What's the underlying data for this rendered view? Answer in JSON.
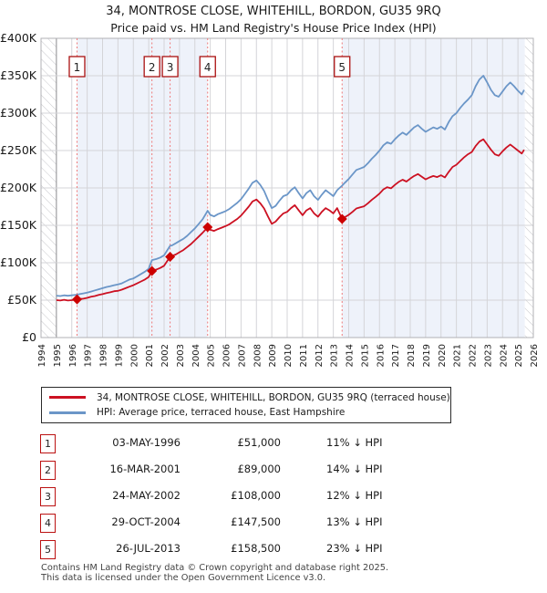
{
  "page": {
    "title_line1": "34, MONTROSE CLOSE, WHITEHILL, BORDON, GU35 9RQ",
    "title_line2": "Price paid vs. HM Land Registry's House Price Index (HPI)"
  },
  "chart_data": {
    "type": "line",
    "title": "34, MONTROSE CLOSE, WHITEHILL, BORDON, GU35 9RQ",
    "subtitle": "Price paid vs. HM Land Registry's House Price Index (HPI)",
    "units_note": "series values in thousands of GBP",
    "x_axis": {
      "min": 1994,
      "max": 2026,
      "tick_interval": 1,
      "emphasized_year_line": 1995
    },
    "y_axis": {
      "max_k": 400,
      "step_k": 50,
      "tick_labels": [
        "£0",
        "£50K",
        "£100K",
        "£150K",
        "£200K",
        "£250K",
        "£300K",
        "£350K",
        "£400K"
      ]
    },
    "colors": {
      "property_line": "#cc1122",
      "hpi_line": "#6b96c8",
      "sale_line": "#ef7a7a",
      "sale_marker": "#cc0000",
      "shade": "#eef2fa",
      "grid": "#d4d4d8",
      "grid_dark": "#8a8a8e",
      "border": "#b0b0b4",
      "hatch": "#c8c8cc",
      "num_box_border": "#aa1111"
    },
    "shaded_regions": [
      [
        1996.34,
        2004.83
      ],
      [
        2013.57,
        2025.45
      ]
    ],
    "hatch_regions": [
      [
        1994,
        1995
      ],
      [
        2025.45,
        2026
      ]
    ],
    "sales": [
      {
        "n": "1",
        "year": 1996.34,
        "price_k": 51,
        "date": "03-MAY-1996",
        "price": "£51,000",
        "vs_hpi": "11% ↓ HPI"
      },
      {
        "n": "2",
        "year": 2001.21,
        "price_k": 89,
        "date": "16-MAR-2001",
        "price": "£89,000",
        "vs_hpi": "14% ↓ HPI"
      },
      {
        "n": "3",
        "year": 2002.39,
        "price_k": 108,
        "date": "24-MAY-2002",
        "price": "£108,000",
        "vs_hpi": "12% ↓ HPI"
      },
      {
        "n": "4",
        "year": 2004.83,
        "price_k": 147.5,
        "date": "29-OCT-2004",
        "price": "£147,500",
        "vs_hpi": "13% ↓ HPI"
      },
      {
        "n": "5",
        "year": 2013.57,
        "price_k": 158.5,
        "date": "26-JUL-2013",
        "price": "£158,500",
        "vs_hpi": "23% ↓ HPI"
      }
    ],
    "series": [
      {
        "name": "34, MONTROSE CLOSE, WHITEHILL, BORDON, GU35 9RQ (terraced house)",
        "color": "#cc1122",
        "points": [
          [
            1995.0,
            50
          ],
          [
            1995.25,
            49.5
          ],
          [
            1995.5,
            50.5
          ],
          [
            1995.75,
            49.5
          ],
          [
            1996.0,
            50
          ],
          [
            1996.34,
            51
          ],
          [
            1996.5,
            51.5
          ],
          [
            1996.75,
            52
          ],
          [
            1997.0,
            53
          ],
          [
            1997.25,
            54.5
          ],
          [
            1997.5,
            55.5
          ],
          [
            1997.75,
            57
          ],
          [
            1998.0,
            58
          ],
          [
            1998.25,
            59.5
          ],
          [
            1998.5,
            60.5
          ],
          [
            1998.75,
            62
          ],
          [
            1999.0,
            62.5
          ],
          [
            1999.25,
            64
          ],
          [
            1999.5,
            66
          ],
          [
            1999.75,
            68
          ],
          [
            2000.0,
            70
          ],
          [
            2000.25,
            72.5
          ],
          [
            2000.5,
            75
          ],
          [
            2000.75,
            77.5
          ],
          [
            2001.0,
            81
          ],
          [
            2001.21,
            89
          ],
          [
            2001.5,
            91
          ],
          [
            2001.75,
            93
          ],
          [
            2002.0,
            96
          ],
          [
            2002.39,
            108
          ],
          [
            2002.5,
            109
          ],
          [
            2002.75,
            111
          ],
          [
            2003.0,
            114
          ],
          [
            2003.25,
            117
          ],
          [
            2003.5,
            121
          ],
          [
            2003.75,
            125
          ],
          [
            2004.0,
            130
          ],
          [
            2004.25,
            135
          ],
          [
            2004.5,
            140
          ],
          [
            2004.83,
            147.5
          ],
          [
            2005.0,
            144
          ],
          [
            2005.25,
            142.5
          ],
          [
            2005.5,
            145
          ],
          [
            2005.75,
            147
          ],
          [
            2006.0,
            149
          ],
          [
            2006.25,
            151.5
          ],
          [
            2006.5,
            155
          ],
          [
            2006.75,
            158.5
          ],
          [
            2007.0,
            163
          ],
          [
            2007.25,
            169
          ],
          [
            2007.5,
            175
          ],
          [
            2007.75,
            182
          ],
          [
            2008.0,
            184.5
          ],
          [
            2008.25,
            179.5
          ],
          [
            2008.5,
            172.5
          ],
          [
            2008.75,
            162
          ],
          [
            2009.0,
            152
          ],
          [
            2009.25,
            155
          ],
          [
            2009.5,
            161
          ],
          [
            2009.75,
            166
          ],
          [
            2010.0,
            168
          ],
          [
            2010.25,
            173
          ],
          [
            2010.5,
            177
          ],
          [
            2010.75,
            170
          ],
          [
            2011.0,
            163.5
          ],
          [
            2011.25,
            170
          ],
          [
            2011.5,
            173
          ],
          [
            2011.75,
            166
          ],
          [
            2012.0,
            161.5
          ],
          [
            2012.25,
            168
          ],
          [
            2012.5,
            173
          ],
          [
            2012.75,
            170
          ],
          [
            2013.0,
            166
          ],
          [
            2013.25,
            173
          ],
          [
            2013.57,
            158.5
          ],
          [
            2013.75,
            161
          ],
          [
            2014.0,
            164
          ],
          [
            2014.25,
            168
          ],
          [
            2014.5,
            172.5
          ],
          [
            2014.75,
            174
          ],
          [
            2015.0,
            175.5
          ],
          [
            2015.25,
            179.5
          ],
          [
            2015.5,
            184
          ],
          [
            2015.75,
            188
          ],
          [
            2016.0,
            192.5
          ],
          [
            2016.25,
            198
          ],
          [
            2016.5,
            201
          ],
          [
            2016.75,
            199.5
          ],
          [
            2017.0,
            204
          ],
          [
            2017.25,
            208
          ],
          [
            2017.5,
            211
          ],
          [
            2017.75,
            208.5
          ],
          [
            2018.0,
            212.5
          ],
          [
            2018.25,
            216
          ],
          [
            2018.5,
            218.5
          ],
          [
            2018.75,
            215
          ],
          [
            2019.0,
            211.5
          ],
          [
            2019.25,
            214
          ],
          [
            2019.5,
            216
          ],
          [
            2019.75,
            214.5
          ],
          [
            2020.0,
            217
          ],
          [
            2020.25,
            214
          ],
          [
            2020.5,
            221.5
          ],
          [
            2020.75,
            228
          ],
          [
            2021.0,
            231
          ],
          [
            2021.25,
            236
          ],
          [
            2021.5,
            241
          ],
          [
            2021.75,
            245
          ],
          [
            2022.0,
            248
          ],
          [
            2022.25,
            256
          ],
          [
            2022.5,
            262
          ],
          [
            2022.75,
            265
          ],
          [
            2023.0,
            258
          ],
          [
            2023.25,
            251
          ],
          [
            2023.5,
            245
          ],
          [
            2023.75,
            243
          ],
          [
            2024.0,
            249
          ],
          [
            2024.25,
            254
          ],
          [
            2024.5,
            258
          ],
          [
            2024.75,
            254
          ],
          [
            2025.0,
            250
          ],
          [
            2025.25,
            246
          ],
          [
            2025.4,
            251
          ]
        ]
      },
      {
        "name": "HPI: Average price, terraced house, East Hampshire",
        "color": "#6b96c8",
        "points": [
          [
            1995.0,
            56
          ],
          [
            1995.25,
            55.5
          ],
          [
            1995.5,
            56.5
          ],
          [
            1995.75,
            55.8
          ],
          [
            1996.0,
            56.5
          ],
          [
            1996.34,
            57.3
          ],
          [
            1996.5,
            58
          ],
          [
            1996.75,
            59
          ],
          [
            1997.0,
            60
          ],
          [
            1997.25,
            61.5
          ],
          [
            1997.5,
            63
          ],
          [
            1997.75,
            64.5
          ],
          [
            1998.0,
            66
          ],
          [
            1998.25,
            67.5
          ],
          [
            1998.5,
            68.5
          ],
          [
            1998.75,
            70
          ],
          [
            1999.0,
            71
          ],
          [
            1999.25,
            72.5
          ],
          [
            1999.5,
            75
          ],
          [
            1999.75,
            77.5
          ],
          [
            2000.0,
            79
          ],
          [
            2000.25,
            82
          ],
          [
            2000.5,
            85
          ],
          [
            2000.75,
            88
          ],
          [
            2001.0,
            92
          ],
          [
            2001.21,
            103.5
          ],
          [
            2001.5,
            105
          ],
          [
            2001.75,
            107
          ],
          [
            2002.0,
            110
          ],
          [
            2002.39,
            122.7
          ],
          [
            2002.5,
            123
          ],
          [
            2002.75,
            126
          ],
          [
            2003.0,
            129
          ],
          [
            2003.25,
            132
          ],
          [
            2003.5,
            136
          ],
          [
            2003.75,
            141
          ],
          [
            2004.0,
            146
          ],
          [
            2004.25,
            152
          ],
          [
            2004.5,
            158
          ],
          [
            2004.83,
            169.5
          ],
          [
            2005.0,
            164
          ],
          [
            2005.25,
            162
          ],
          [
            2005.5,
            165
          ],
          [
            2005.75,
            167
          ],
          [
            2006.0,
            169
          ],
          [
            2006.25,
            172
          ],
          [
            2006.5,
            176
          ],
          [
            2006.75,
            180
          ],
          [
            2007.0,
            185
          ],
          [
            2007.25,
            192
          ],
          [
            2007.5,
            199
          ],
          [
            2007.75,
            207
          ],
          [
            2008.0,
            210
          ],
          [
            2008.25,
            204
          ],
          [
            2008.5,
            196
          ],
          [
            2008.75,
            184
          ],
          [
            2009.0,
            173
          ],
          [
            2009.25,
            176
          ],
          [
            2009.5,
            183
          ],
          [
            2009.75,
            189
          ],
          [
            2010.0,
            191
          ],
          [
            2010.25,
            197
          ],
          [
            2010.5,
            201
          ],
          [
            2010.75,
            193
          ],
          [
            2011.0,
            186
          ],
          [
            2011.25,
            193
          ],
          [
            2011.5,
            197
          ],
          [
            2011.75,
            189
          ],
          [
            2012.0,
            184
          ],
          [
            2012.25,
            191
          ],
          [
            2012.5,
            197
          ],
          [
            2012.75,
            193
          ],
          [
            2013.0,
            189
          ],
          [
            2013.25,
            197
          ],
          [
            2013.57,
            203
          ],
          [
            2013.75,
            207
          ],
          [
            2014.0,
            212
          ],
          [
            2014.25,
            218
          ],
          [
            2014.5,
            224
          ],
          [
            2014.75,
            226
          ],
          [
            2015.0,
            228
          ],
          [
            2015.25,
            233
          ],
          [
            2015.5,
            239
          ],
          [
            2015.75,
            244
          ],
          [
            2016.0,
            250
          ],
          [
            2016.25,
            257
          ],
          [
            2016.5,
            261
          ],
          [
            2016.75,
            259
          ],
          [
            2017.0,
            265
          ],
          [
            2017.25,
            270
          ],
          [
            2017.5,
            274
          ],
          [
            2017.75,
            271
          ],
          [
            2018.0,
            276
          ],
          [
            2018.25,
            281
          ],
          [
            2018.5,
            284
          ],
          [
            2018.75,
            279
          ],
          [
            2019.0,
            275
          ],
          [
            2019.25,
            278
          ],
          [
            2019.5,
            281
          ],
          [
            2019.75,
            279
          ],
          [
            2020.0,
            282
          ],
          [
            2020.25,
            278
          ],
          [
            2020.5,
            288
          ],
          [
            2020.75,
            296
          ],
          [
            2021.0,
            300
          ],
          [
            2021.25,
            307
          ],
          [
            2021.5,
            313
          ],
          [
            2021.75,
            318
          ],
          [
            2022.0,
            324
          ],
          [
            2022.25,
            336
          ],
          [
            2022.5,
            345
          ],
          [
            2022.75,
            350
          ],
          [
            2023.0,
            341
          ],
          [
            2023.25,
            331
          ],
          [
            2023.5,
            324
          ],
          [
            2023.75,
            322
          ],
          [
            2024.0,
            329
          ],
          [
            2024.25,
            336
          ],
          [
            2024.5,
            341
          ],
          [
            2024.75,
            336
          ],
          [
            2025.0,
            330
          ],
          [
            2025.25,
            325
          ],
          [
            2025.4,
            331
          ]
        ]
      }
    ]
  },
  "legend": {
    "entries": [
      {
        "label": "34, MONTROSE CLOSE, WHITEHILL, BORDON, GU35 9RQ (terraced house)",
        "color": "#cc1122"
      },
      {
        "label": "HPI: Average price, terraced house, East Hampshire",
        "color": "#6b96c8"
      }
    ]
  },
  "table": {
    "rows": [
      {
        "num": "1",
        "date": "03-MAY-1996",
        "price": "£51,000",
        "vs_hpi": "11% ↓ HPI"
      },
      {
        "num": "2",
        "date": "16-MAR-2001",
        "price": "£89,000",
        "vs_hpi": "14% ↓ HPI"
      },
      {
        "num": "3",
        "date": "24-MAY-2002",
        "price": "£108,000",
        "vs_hpi": "12% ↓ HPI"
      },
      {
        "num": "4",
        "date": "29-OCT-2004",
        "price": "£147,500",
        "vs_hpi": "13% ↓ HPI"
      },
      {
        "num": "5",
        "date": "26-JUL-2013",
        "price": "£158,500",
        "vs_hpi": "23% ↓ HPI"
      }
    ]
  },
  "footer": {
    "line1": "Contains HM Land Registry data © Crown copyright and database right 2025.",
    "line2": "This data is licensed under the Open Government Licence v3.0."
  }
}
